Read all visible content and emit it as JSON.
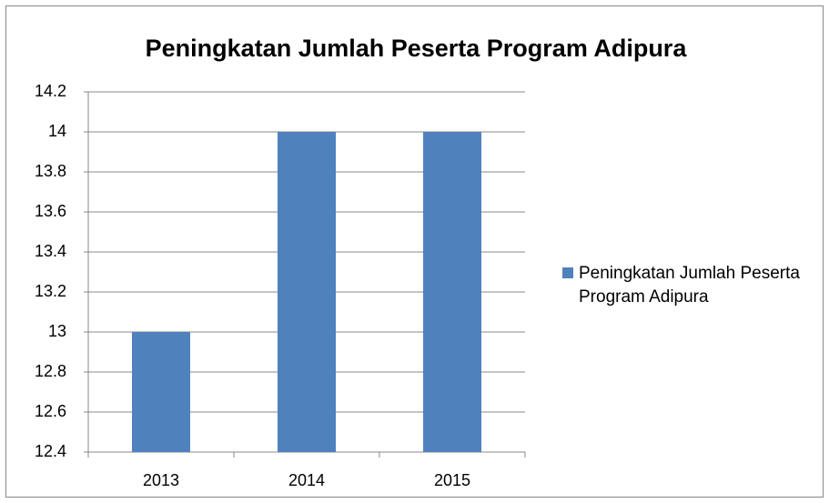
{
  "chart_data": {
    "type": "bar",
    "title": "Peningkatan Jumlah Peserta Program Adipura",
    "categories": [
      "2013",
      "2014",
      "2015"
    ],
    "series": [
      {
        "name": "Peningkatan Jumlah Peserta Program Adipura",
        "color": "#4f81bd",
        "values": [
          13,
          14,
          14
        ]
      }
    ],
    "ylim": [
      12.4,
      14.2
    ],
    "yticks": [
      12.4,
      12.6,
      12.8,
      13,
      13.2,
      13.4,
      13.6,
      13.8,
      14,
      14.2
    ],
    "grid": true,
    "legend": "right"
  }
}
